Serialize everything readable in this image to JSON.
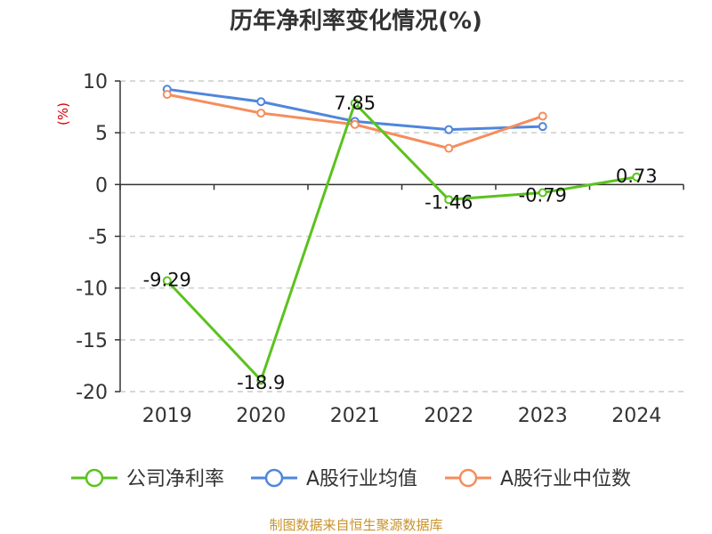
{
  "chart_data": {
    "type": "line",
    "title": "历年净利率变化情况(%)",
    "ylabel": "(%)",
    "categories": [
      "2019",
      "2020",
      "2021",
      "2022",
      "2023",
      "2024"
    ],
    "ylim": [
      -20,
      10
    ],
    "yticks": [
      10,
      5,
      0,
      -5,
      -10,
      -15,
      -20
    ],
    "grid": "horizontal dashed",
    "legend_position": "bottom",
    "series": [
      {
        "name": "公司净利率",
        "color": "#5bc21e",
        "values": [
          -9.29,
          -18.9,
          7.85,
          -1.46,
          -0.79,
          0.73
        ],
        "labels": [
          "-9.29",
          "-18.9",
          "7.85",
          "-1.46",
          "-0.79",
          "0.73"
        ]
      },
      {
        "name": "A股行业均值",
        "color": "#4f86dc",
        "values": [
          9.2,
          8.0,
          6.1,
          5.3,
          5.6,
          null
        ]
      },
      {
        "name": "A股行业中位数",
        "color": "#f58d5c",
        "values": [
          8.7,
          6.9,
          5.8,
          3.5,
          6.6,
          null
        ]
      }
    ]
  },
  "footer": {
    "source": "制图数据来自恒生聚源数据库"
  }
}
